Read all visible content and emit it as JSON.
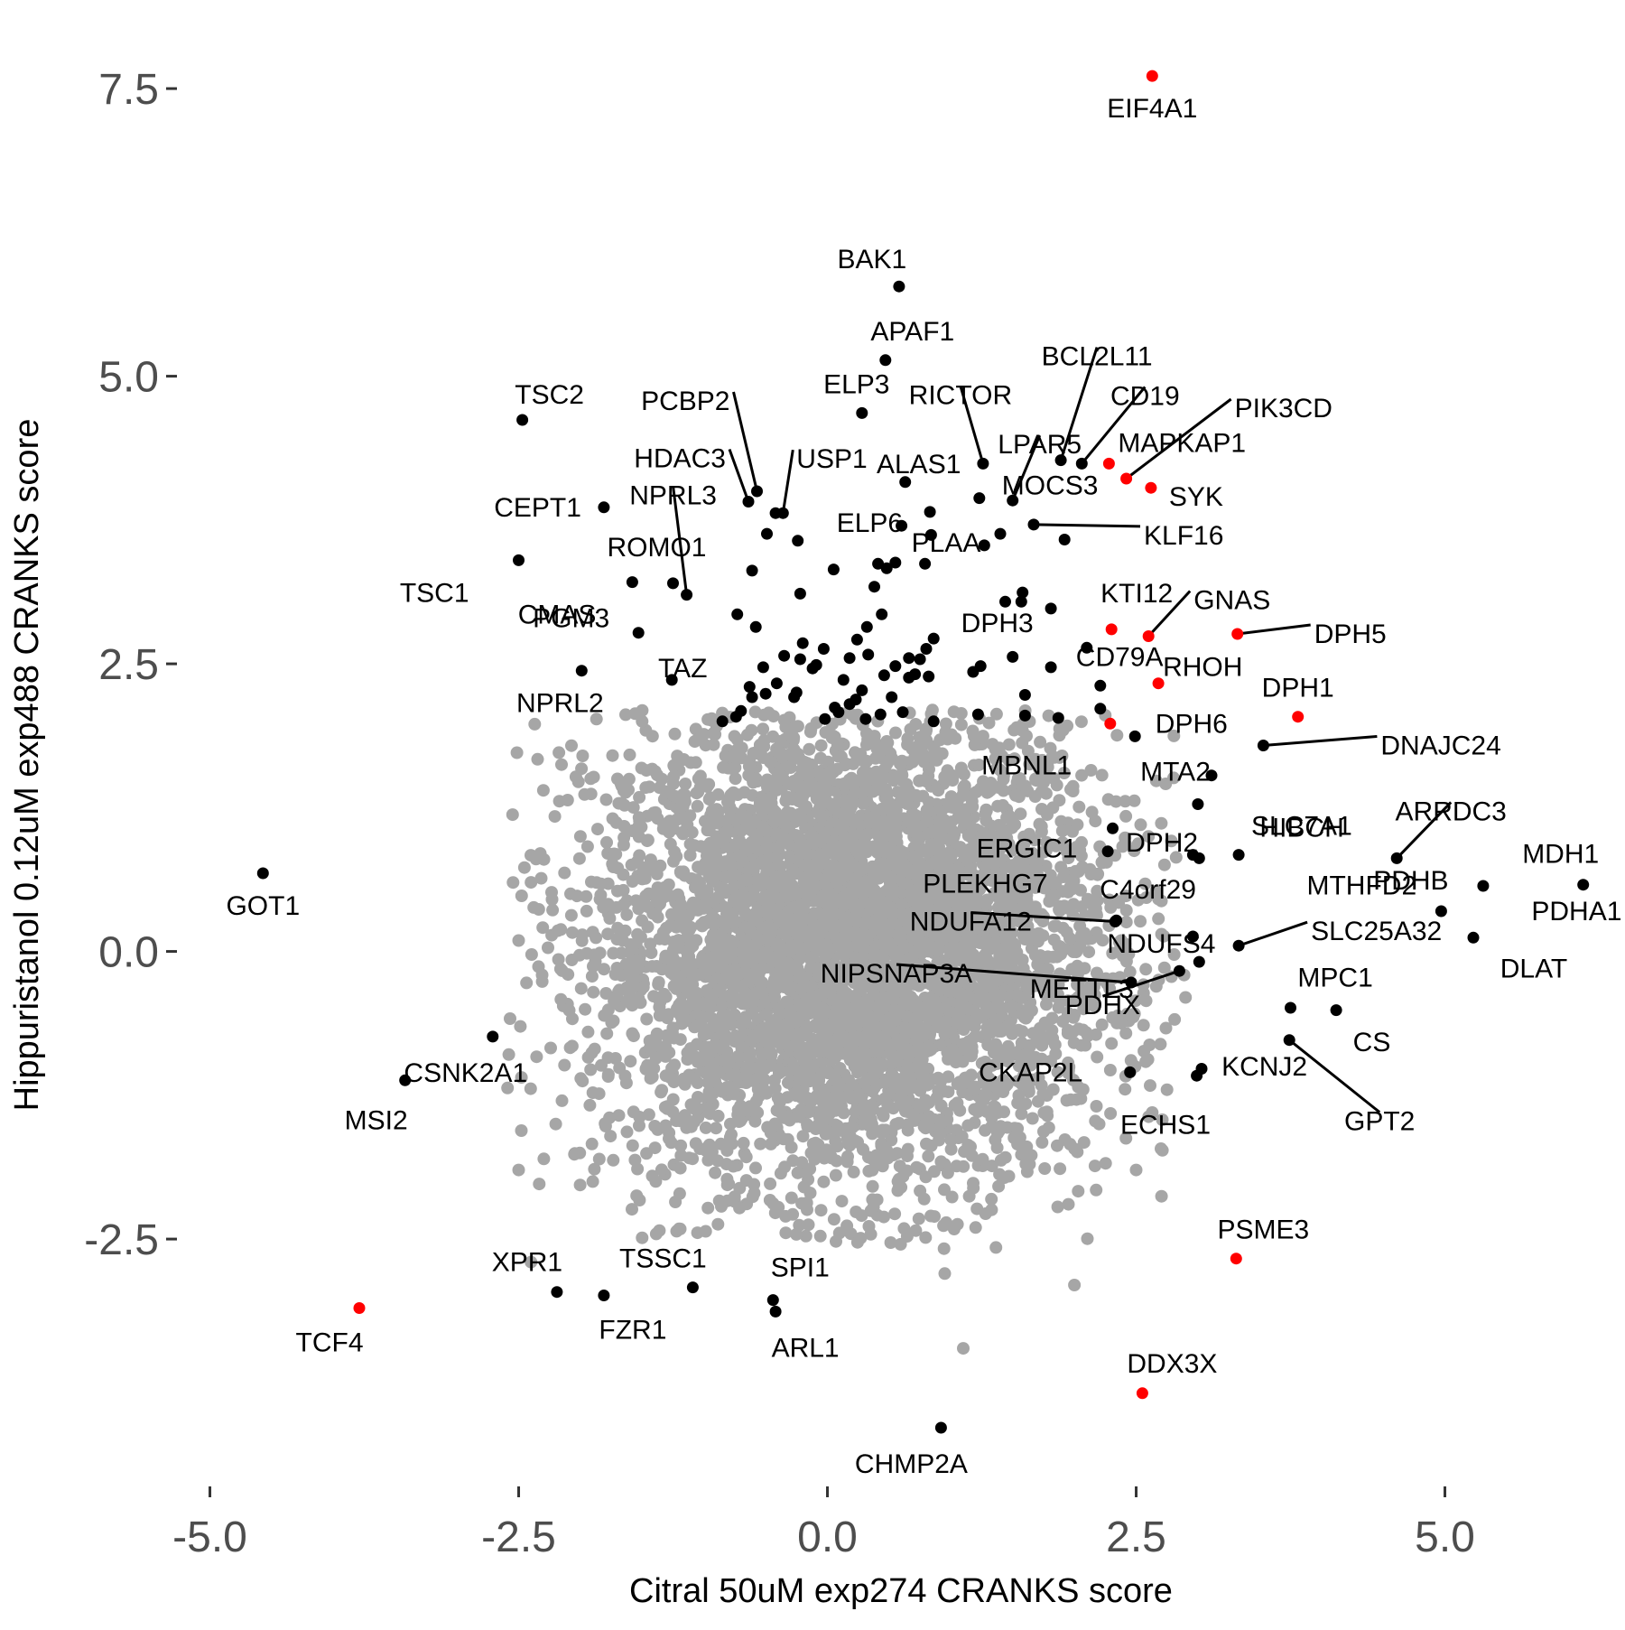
{
  "chart_data": {
    "type": "scatter",
    "xlabel": "Citral 50uM exp274 CRANKS score",
    "ylabel": "Hippuristanol 0.12uM exp488 CRANKS score",
    "xlim": [
      -5.15,
      6.35
    ],
    "ylim": [
      -4.65,
      7.75
    ],
    "x_ticks": [
      -5.0,
      -2.5,
      0.0,
      2.5,
      5.0
    ],
    "x_tick_labels": [
      "-5.0",
      "-2.5",
      "0.0",
      "2.5",
      "5.0"
    ],
    "y_ticks": [
      -2.5,
      0.0,
      2.5,
      5.0,
      7.5
    ],
    "y_tick_labels": [
      "-2.5",
      "0.0",
      "2.5",
      "5.0",
      "7.5"
    ],
    "grid": false,
    "colors": {
      "background_points": "#a6a6a6",
      "highlight_black": "#000000",
      "highlight_red": "#ff0000",
      "tick_labels": "#4d4d4d"
    },
    "background_cloud": {
      "description_shape": "dense gray cloud centered near (0.2, 0.0)",
      "center": [
        0.2,
        0.05
      ],
      "spread": [
        1.05,
        1.05
      ],
      "color": "#a6a6a6",
      "outliers": [
        [
          -2.3,
          1.4
        ],
        [
          -2.5,
          -1.9
        ],
        [
          -2.2,
          -1.5
        ],
        [
          -2.1,
          -0.2
        ],
        [
          -2.4,
          0.6
        ],
        [
          2.5,
          -1.9
        ],
        [
          2.2,
          -1.5
        ],
        [
          0.95,
          -2.8
        ],
        [
          1.1,
          -3.45
        ],
        [
          2.0,
          -2.9
        ],
        [
          -1.5,
          2.0
        ],
        [
          -1.9,
          -2.0
        ],
        [
          2.6,
          1.0
        ],
        [
          2.9,
          -0.4
        ],
        [
          -2.0,
          1.0
        ],
        [
          1.2,
          -2.4
        ],
        [
          -1.7,
          1.5
        ],
        [
          2.3,
          -0.8
        ],
        [
          -2.4,
          -2.7
        ],
        [
          1.9,
          1.7
        ]
      ]
    },
    "labeled_points": [
      {
        "label": "EIF4A1",
        "x": 2.63,
        "y": 7.61,
        "color": "red"
      },
      {
        "label": "BAK1",
        "x": 0.58,
        "y": 5.78,
        "color": "black"
      },
      {
        "label": "APAF1",
        "x": 0.47,
        "y": 5.14,
        "color": "black"
      },
      {
        "label": "TSC2",
        "x": -2.47,
        "y": 4.62,
        "color": "black"
      },
      {
        "label": "ELP3",
        "x": 0.28,
        "y": 4.68,
        "color": "black"
      },
      {
        "label": "RICTOR",
        "x": 1.26,
        "y": 4.24,
        "color": "black"
      },
      {
        "label": "BCL2L11",
        "x": 1.89,
        "y": 4.27,
        "color": "black"
      },
      {
        "label": "CD19",
        "x": 2.06,
        "y": 4.24,
        "color": "black"
      },
      {
        "label": "PIK3CD",
        "x": 2.42,
        "y": 4.11,
        "color": "red"
      },
      {
        "label": "MAPKAP1",
        "x": 2.28,
        "y": 4.24,
        "color": "red"
      },
      {
        "label": "SYK",
        "x": 2.62,
        "y": 4.03,
        "color": "red"
      },
      {
        "label": "PCBP2",
        "x": -0.57,
        "y": 4.0,
        "color": "black"
      },
      {
        "label": "HDAC3",
        "x": -0.64,
        "y": 3.91,
        "color": "black"
      },
      {
        "label": "USP1",
        "x": -0.36,
        "y": 3.81,
        "color": "black"
      },
      {
        "label": "ALAS1",
        "x": 0.63,
        "y": 4.08,
        "color": "black"
      },
      {
        "label": "LPAR5",
        "x": 1.5,
        "y": 3.92,
        "color": "black"
      },
      {
        "label": "MOCS3",
        "x": 1.23,
        "y": 3.94,
        "color": "black"
      },
      {
        "label": "ELP6",
        "x": 0.83,
        "y": 3.82,
        "color": "black"
      },
      {
        "label": "CEPT1",
        "x": -1.81,
        "y": 3.86,
        "color": "black"
      },
      {
        "label": "NPRL3",
        "x": -1.14,
        "y": 3.1,
        "color": "black"
      },
      {
        "label": "KLF16",
        "x": 1.67,
        "y": 3.71,
        "color": "black"
      },
      {
        "label": "ROMO1",
        "x": -1.25,
        "y": 3.2,
        "color": "black"
      },
      {
        "label": "PLAA",
        "x": 1.4,
        "y": 3.63,
        "color": "black"
      },
      {
        "label": "TSC1",
        "x": -2.5,
        "y": 3.4,
        "color": "black"
      },
      {
        "label": "CMAS",
        "x": -1.58,
        "y": 3.21,
        "color": "black"
      },
      {
        "label": "DPH3",
        "x": 1.58,
        "y": 3.12,
        "color": "black"
      },
      {
        "label": "KTI12",
        "x": 2.3,
        "y": 2.8,
        "color": "red"
      },
      {
        "label": "GNAS",
        "x": 2.6,
        "y": 2.74,
        "color": "red"
      },
      {
        "label": "DPH5",
        "x": 3.32,
        "y": 2.76,
        "color": "red"
      },
      {
        "label": "PGM3",
        "x": -1.53,
        "y": 2.77,
        "color": "black"
      },
      {
        "label": "CD79A",
        "x": 2.1,
        "y": 2.64,
        "color": "black"
      },
      {
        "label": "TAZ",
        "x": -1.26,
        "y": 2.36,
        "color": "black"
      },
      {
        "label": "RHOH",
        "x": 2.68,
        "y": 2.33,
        "color": "red"
      },
      {
        "label": "NPRL2",
        "x": -1.99,
        "y": 2.44,
        "color": "black"
      },
      {
        "label": "DPH1",
        "x": 3.81,
        "y": 2.04,
        "color": "red"
      },
      {
        "label": "DPH6",
        "x": 2.29,
        "y": 1.98,
        "color": "red"
      },
      {
        "label": "DNAJC24",
        "x": 3.53,
        "y": 1.79,
        "color": "black"
      },
      {
        "label": "MBNL1",
        "x": 2.49,
        "y": 1.87,
        "color": "black"
      },
      {
        "label": "MTA2",
        "x": 3.11,
        "y": 1.53,
        "color": "black"
      },
      {
        "label": "SLC7A1",
        "x": 3.0,
        "y": 1.28,
        "color": "black"
      },
      {
        "label": "ERGIC1",
        "x": 2.31,
        "y": 1.07,
        "color": "black"
      },
      {
        "label": "DPH2",
        "x": 2.27,
        "y": 0.87,
        "color": "black"
      },
      {
        "label": "HIBCH",
        "x": 3.33,
        "y": 0.84,
        "color": "black"
      },
      {
        "label": "ARRDC3",
        "x": 4.61,
        "y": 0.81,
        "color": "black"
      },
      {
        "label": "PLEKHG7",
        "x": 2.96,
        "y": 0.84,
        "color": "black"
      },
      {
        "label": "MDH1",
        "x": 6.12,
        "y": 0.58,
        "color": "black"
      },
      {
        "label": "PDHB",
        "x": 5.31,
        "y": 0.57,
        "color": "black"
      },
      {
        "label": "MTHFD2",
        "x": 3.01,
        "y": 0.81,
        "color": "black"
      },
      {
        "label": "C4orf29",
        "x": 2.34,
        "y": 0.27,
        "color": "black"
      },
      {
        "label": "PDHA1",
        "x": 4.97,
        "y": 0.35,
        "color": "black"
      },
      {
        "label": "NDUFA12",
        "x": 2.33,
        "y": 0.26,
        "color": "black"
      },
      {
        "label": "SLC25A32",
        "x": 3.33,
        "y": 0.05,
        "color": "black"
      },
      {
        "label": "DLAT",
        "x": 5.23,
        "y": 0.12,
        "color": "black"
      },
      {
        "label": "NDUFS4",
        "x": 2.96,
        "y": 0.13,
        "color": "black"
      },
      {
        "label": "NIPSNAP3A",
        "x": 2.46,
        "y": -0.27,
        "color": "black"
      },
      {
        "label": "PDHX",
        "x": 2.85,
        "y": -0.17,
        "color": "black"
      },
      {
        "label": "MPC1",
        "x": 4.12,
        "y": -0.51,
        "color": "black"
      },
      {
        "label": "METTL3",
        "x": 3.01,
        "y": -0.09,
        "color": "black"
      },
      {
        "label": "CS",
        "x": 3.75,
        "y": -0.49,
        "color": "black"
      },
      {
        "label": "GPT2",
        "x": 3.74,
        "y": -0.77,
        "color": "black"
      },
      {
        "label": "CKAP2L",
        "x": 2.45,
        "y": -1.05,
        "color": "black"
      },
      {
        "label": "KCNJ2",
        "x": 2.99,
        "y": -1.08,
        "color": "black"
      },
      {
        "label": "ECHS1",
        "x": 3.03,
        "y": -1.02,
        "color": "black"
      },
      {
        "label": "GOT1",
        "x": -4.57,
        "y": 0.68,
        "color": "black"
      },
      {
        "label": "CSNK2A1",
        "x": -2.71,
        "y": -0.74,
        "color": "black"
      },
      {
        "label": "MSI2",
        "x": -3.42,
        "y": -1.12,
        "color": "black"
      },
      {
        "label": "PSME3",
        "x": 3.31,
        "y": -2.67,
        "color": "red"
      },
      {
        "label": "XPR1",
        "x": -2.19,
        "y": -2.96,
        "color": "black"
      },
      {
        "label": "TSSC1",
        "x": -1.09,
        "y": -2.92,
        "color": "black"
      },
      {
        "label": "FZR1",
        "x": -1.81,
        "y": -2.99,
        "color": "black"
      },
      {
        "label": "SPI1",
        "x": -0.44,
        "y": -3.03,
        "color": "black"
      },
      {
        "label": "ARL1",
        "x": -0.42,
        "y": -3.13,
        "color": "black"
      },
      {
        "label": "TCF4",
        "x": -3.79,
        "y": -3.1,
        "color": "red"
      },
      {
        "label": "DDX3X",
        "x": 2.55,
        "y": -3.84,
        "color": "red"
      },
      {
        "label": "CHMP2A",
        "x": 0.92,
        "y": -4.14,
        "color": "black"
      }
    ],
    "unlabeled_black_points": [
      [
        -0.42,
        3.81
      ],
      [
        -0.24,
        3.57
      ],
      [
        -0.61,
        3.31
      ],
      [
        -0.49,
        3.63
      ],
      [
        -0.22,
        3.11
      ],
      [
        -0.73,
        2.93
      ],
      [
        -0.58,
        2.82
      ],
      [
        -0.22,
        2.54
      ],
      [
        -0.03,
        2.63
      ],
      [
        0.18,
        2.55
      ],
      [
        0.32,
        2.82
      ],
      [
        0.41,
        3.37
      ],
      [
        0.48,
        3.33
      ],
      [
        0.55,
        3.38
      ],
      [
        0.79,
        3.37
      ],
      [
        0.84,
        3.62
      ],
      [
        0.44,
        2.93
      ],
      [
        0.86,
        2.72
      ],
      [
        0.55,
        2.48
      ],
      [
        0.66,
        2.38
      ],
      [
        0.75,
        2.54
      ],
      [
        0.82,
        2.39
      ],
      [
        0.05,
        3.32
      ],
      [
        -0.09,
        2.49
      ],
      [
        -0.52,
        2.47
      ],
      [
        -0.41,
        2.33
      ],
      [
        -0.5,
        2.24
      ],
      [
        -0.27,
        2.21
      ],
      [
        -0.61,
        2.21
      ],
      [
        -0.35,
        2.57
      ],
      [
        -0.2,
        2.68
      ],
      [
        0.06,
        2.12
      ],
      [
        0.18,
        2.15
      ],
      [
        0.28,
        2.27
      ],
      [
        0.43,
        2.06
      ],
      [
        0.46,
        2.4
      ],
      [
        0.61,
        2.08
      ],
      [
        0.86,
        2.0
      ],
      [
        1.18,
        2.43
      ],
      [
        1.24,
        2.48
      ],
      [
        1.5,
        2.56
      ],
      [
        1.6,
        2.23
      ],
      [
        1.6,
        2.05
      ],
      [
        1.87,
        2.03
      ],
      [
        1.81,
        2.47
      ],
      [
        1.81,
        2.98
      ],
      [
        1.57,
        3.04
      ],
      [
        1.44,
        3.04
      ],
      [
        1.22,
        2.06
      ],
      [
        2.21,
        2.31
      ],
      [
        2.21,
        2.11
      ],
      [
        1.92,
        3.58
      ],
      [
        -0.7,
        2.09
      ],
      [
        -0.74,
        2.04
      ],
      [
        -0.02,
        2.02
      ],
      [
        0.31,
        2.02
      ],
      [
        0.66,
        2.55
      ],
      [
        0.8,
        2.63
      ],
      [
        -0.12,
        2.46
      ],
      [
        -0.25,
        2.25
      ],
      [
        0.13,
        2.36
      ],
      [
        0.33,
        2.58
      ],
      [
        0.52,
        2.21
      ],
      [
        -0.85,
        2.0
      ],
      [
        -0.63,
        2.3
      ],
      [
        0.09,
        2.08
      ],
      [
        0.23,
        2.19
      ],
      [
        0.71,
        2.41
      ],
      [
        0.38,
        3.17
      ],
      [
        0.24,
        2.71
      ],
      [
        0.6,
        3.7
      ],
      [
        1.27,
        3.53
      ]
    ]
  }
}
